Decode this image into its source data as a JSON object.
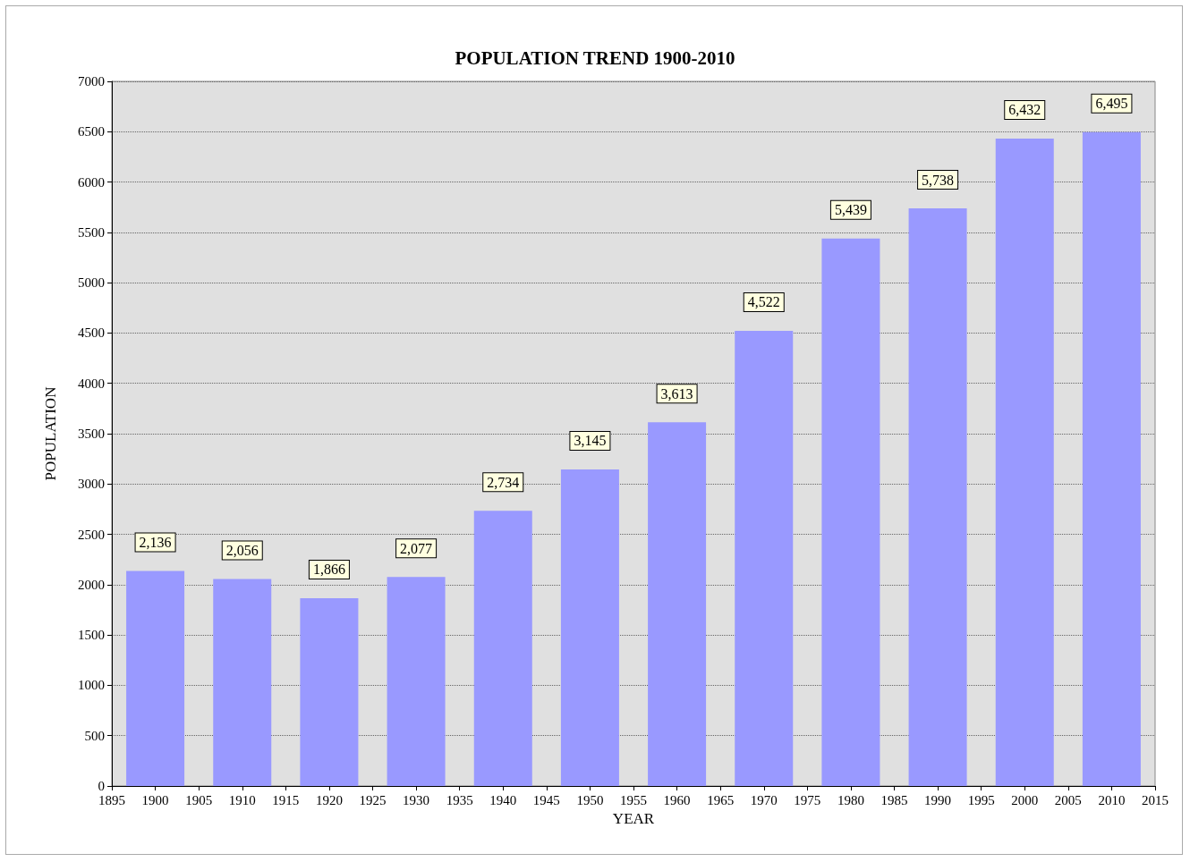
{
  "chart_data": {
    "type": "bar",
    "title": "POPULATION TREND 1900-2010",
    "xlabel": "YEAR",
    "ylabel": "POPULATION",
    "x": [
      1900,
      1910,
      1920,
      1930,
      1940,
      1950,
      1960,
      1970,
      1980,
      1990,
      2000,
      2010
    ],
    "values": [
      2136,
      2056,
      1866,
      2077,
      2734,
      3145,
      3613,
      4522,
      5439,
      5738,
      6432,
      6495
    ],
    "value_labels": [
      "2,136",
      "2,056",
      "1,866",
      "2,077",
      "2,734",
      "3,145",
      "3,613",
      "4,522",
      "5,439",
      "5,738",
      "6,432",
      "6,495"
    ],
    "color": "#9999ff",
    "xlim": [
      1895,
      2015
    ],
    "xticks": [
      1895,
      1900,
      1905,
      1910,
      1915,
      1920,
      1925,
      1930,
      1935,
      1940,
      1945,
      1950,
      1955,
      1960,
      1965,
      1970,
      1975,
      1980,
      1985,
      1990,
      1995,
      2000,
      2005,
      2010,
      2015
    ],
    "ylim": [
      0,
      7000
    ],
    "yticks": [
      0,
      500,
      1000,
      1500,
      2000,
      2500,
      3000,
      3500,
      4000,
      4500,
      5000,
      5500,
      6000,
      6500,
      7000
    ],
    "grid": "y"
  }
}
